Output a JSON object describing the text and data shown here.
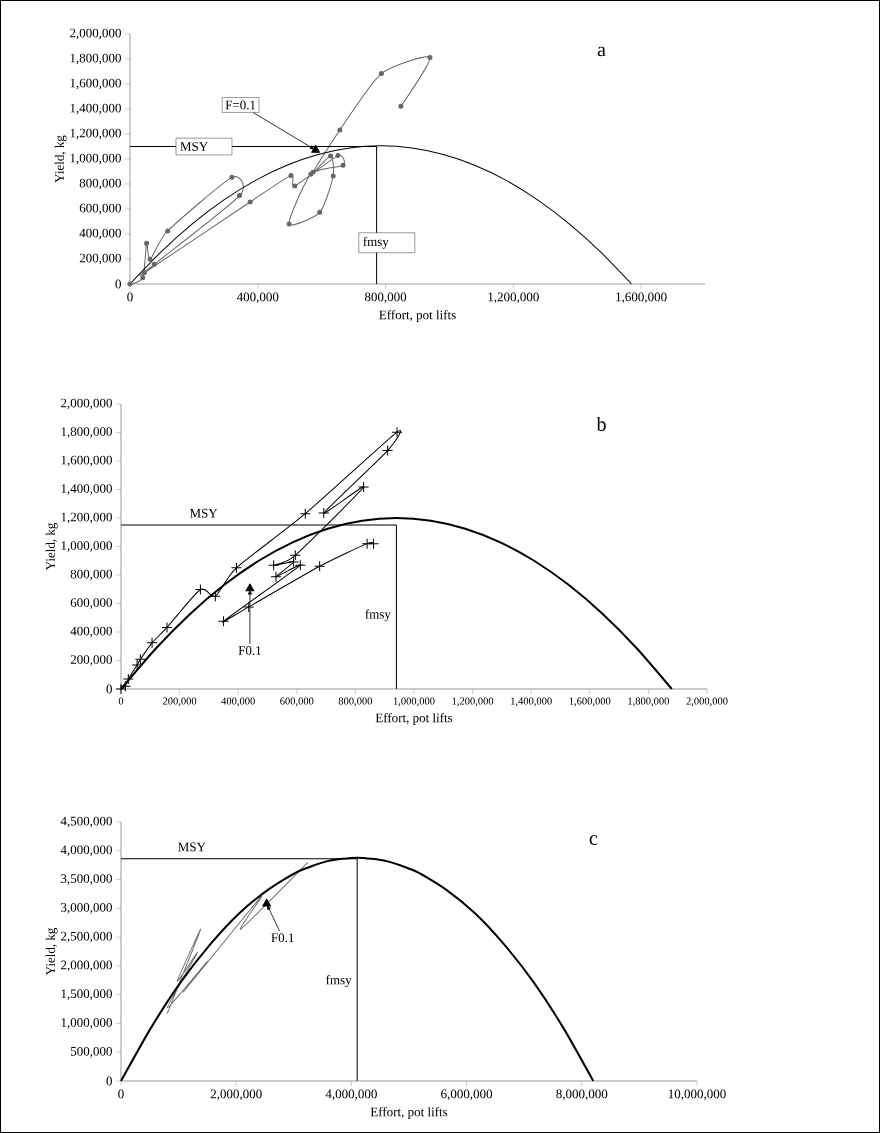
{
  "chart_data": [
    {
      "type": "line",
      "title": "a",
      "xlabel": "Effort, pot lifts",
      "ylabel": "Yield, kg",
      "xlim": [
        0,
        1800000
      ],
      "ylim": [
        0,
        2000000
      ],
      "xticks": [
        0,
        {
          "value": 400000,
          "label": "400,000"
        },
        {
          "value": 800000,
          "label": "800,000"
        },
        {
          "value": 1200000,
          "label": "1,200,000"
        },
        {
          "value": 1600000,
          "label": "1,600,000"
        }
      ],
      "yticks": [
        0,
        {
          "value": 200000,
          "label": "200,000"
        },
        {
          "value": 400000,
          "label": "400,000"
        },
        {
          "value": 600000,
          "label": "600,000"
        },
        {
          "value": 800000,
          "label": "800,000"
        },
        {
          "value": 1000000,
          "label": "1,000,000"
        },
        {
          "value": 1200000,
          "label": "1,200,000"
        },
        {
          "value": 1400000,
          "label": "1,400,000"
        },
        {
          "value": 1600000,
          "label": "1,600,000"
        },
        {
          "value": 1800000,
          "label": "1,800,000"
        },
        {
          "value": 2000000,
          "label": "2,000,000"
        }
      ],
      "series": [
        {
          "color": "#666666",
          "marker": "circle",
          "x": [
            0,
            40000,
            52000,
            63000,
            118000,
            319000,
            343000,
            76000,
            45000,
            376000,
            504000,
            516000,
            651000,
            667000,
            566000,
            498000,
            594000,
            636000,
            628000,
            573000,
            657000,
            787000,
            939000,
            848000
          ],
          "values": [
            0,
            50000,
            325000,
            197000,
            424000,
            853000,
            707000,
            157000,
            90000,
            656000,
            867000,
            784000,
            1027000,
            949000,
            877000,
            480000,
            573000,
            864000,
            1024000,
            893000,
            1232000,
            1683000,
            1811000,
            1421000
          ]
        },
        {
          "color": "#000000",
          "marker": "none",
          "x": [
            0,
            98000,
            196000,
            294000,
            393000,
            491000,
            589000,
            687000,
            785000,
            883000,
            981000,
            1079000,
            1178000,
            1276000,
            1374000,
            1472000,
            1570000
          ],
          "values": [
            0,
            259000,
            483000,
            673000,
            829000,
            950000,
            1036000,
            1088000,
            1105000,
            1088000,
            1036000,
            950000,
            829000,
            673000,
            483000,
            259000,
            0
          ]
        },
        {
          "name": "MSY",
          "color": "#000000",
          "marker": "none",
          "x": [
            0,
            772000
          ],
          "values": [
            1100000,
            1100000
          ]
        },
        {
          "name": "fmsy",
          "color": "#000000",
          "marker": "none",
          "x": [
            772000,
            772000
          ],
          "values": [
            0,
            1100000
          ]
        },
        {
          "type": "scatter",
          "color": "#000000",
          "marker": "triangle",
          "x": [
            581000
          ],
          "values": [
            1072000
          ]
        }
      ],
      "annotations": [
        {
          "text": "F=0.1",
          "x": 581000,
          "y": 1072000
        }
      ]
    },
    {
      "type": "line",
      "title": "b",
      "xlabel": "Effort, pot lifts",
      "ylabel": "Yield, kg",
      "xlim": [
        0,
        2000000
      ],
      "ylim": [
        0,
        2000000
      ],
      "xticks": [
        0,
        {
          "value": 200000,
          "label": "200,000"
        },
        {
          "value": 400000,
          "label": "400,000"
        },
        {
          "value": 600000,
          "label": "600,000"
        },
        {
          "value": 800000,
          "label": "800,000"
        },
        {
          "value": 1000000,
          "label": "1,000,000"
        },
        {
          "value": 1200000,
          "label": "1,200,000"
        },
        {
          "value": 1400000,
          "label": "1,400,000"
        },
        {
          "value": 1600000,
          "label": "1,600,000"
        },
        {
          "value": 1800000,
          "label": "1,800,000"
        },
        {
          "value": 2000000,
          "label": "2,000,000"
        }
      ],
      "yticks": [
        0,
        {
          "value": 200000,
          "label": "200,000"
        },
        {
          "value": 400000,
          "label": "400,000"
        },
        {
          "value": 600000,
          "label": "600,000"
        },
        {
          "value": 800000,
          "label": "800,000"
        },
        {
          "value": 1000000,
          "label": "1,000,000"
        },
        {
          "value": 1200000,
          "label": "1,200,000"
        },
        {
          "value": 1400000,
          "label": "1,400,000"
        },
        {
          "value": 1600000,
          "label": "1,600,000"
        },
        {
          "value": 1800000,
          "label": "1,800,000"
        },
        {
          "value": 2000000,
          "label": "2,000,000"
        }
      ],
      "series": [
        {
          "color": "#000000",
          "marker": "cross",
          "x": [
            0,
            15000,
            25000,
            55000,
            66000,
            106000,
            157000,
            271000,
            322000,
            394000,
            629000,
            942000,
            910000,
            692000,
            828000,
            595000,
            521000,
            589000,
            529000,
            612000,
            350000,
            436000,
            678000,
            840000,
            862000
          ],
          "values": [
            0,
            20000,
            70000,
            168000,
            208000,
            324000,
            432000,
            698000,
            651000,
            850000,
            1230000,
            1802000,
            1673000,
            1235000,
            1417000,
            938000,
            868000,
            892000,
            787000,
            868000,
            476000,
            576000,
            861000,
            1020000,
            1020000
          ]
        },
        {
          "color": "#000000",
          "marker": "none",
          "x": [
            0,
            117500,
            235000,
            352500,
            470000,
            587500,
            705000,
            822500,
            940000,
            1057500,
            1175000,
            1292500,
            1410000,
            1527500,
            1645000,
            1762500,
            1880000
          ],
          "values": [
            0,
            281000,
            525000,
            731000,
            900000,
            1031000,
            1125000,
            1181000,
            1200000,
            1181000,
            1125000,
            1031000,
            900000,
            731000,
            525000,
            281000,
            0
          ]
        },
        {
          "name": "MSY",
          "color": "#000000",
          "marker": "none",
          "x": [
            0,
            940000
          ],
          "values": [
            1150000,
            1150000
          ]
        },
        {
          "name": "fmsy",
          "color": "#000000",
          "marker": "none",
          "x": [
            940000,
            940000
          ],
          "values": [
            0,
            1150000
          ]
        },
        {
          "type": "scatter",
          "color": "#000000",
          "marker": "triangle",
          "x": [
            440000
          ],
          "values": [
            705000
          ]
        }
      ],
      "annotations": [
        {
          "text": "F0.1",
          "x": 440000,
          "y": 705000
        }
      ]
    },
    {
      "type": "line",
      "title": "c",
      "xlabel": "Effort, pot lifts",
      "ylabel": "Yield, kg",
      "xlim": [
        0,
        10000000
      ],
      "ylim": [
        0,
        4500000
      ],
      "xticks": [
        0,
        {
          "value": 2000000,
          "label": "2,000,000"
        },
        {
          "value": 4000000,
          "label": "4,000,000"
        },
        {
          "value": 6000000,
          "label": "6,000,000"
        },
        {
          "value": 8000000,
          "label": "8,000,000"
        },
        {
          "value": 10000000,
          "label": "10,000,000"
        }
      ],
      "yticks": [
        0,
        {
          "value": 500000,
          "label": "500,000"
        },
        {
          "value": 1000000,
          "label": "1,000,000"
        },
        {
          "value": 1500000,
          "label": "1,500,000"
        },
        {
          "value": 2000000,
          "label": "2,000,000"
        },
        {
          "value": 2500000,
          "label": "2,500,000"
        },
        {
          "value": 3000000,
          "label": "3,000,000"
        },
        {
          "value": 3500000,
          "label": "3,500,000"
        },
        {
          "value": 4000000,
          "label": "4,000,000"
        },
        {
          "value": 4500000,
          "label": "4,500,000"
        }
      ],
      "series": [
        {
          "color": "#707070",
          "marker": "none",
          "x": [
            802000,
            1384000,
            977000,
            1326000,
            802000,
            1500000,
            1093000,
            2430000,
            2081000,
            3244000
          ],
          "values": [
            1170000,
            2640000,
            1730000,
            2230000,
            1270000,
            2080000,
            1560000,
            3200000,
            2640000,
            3800000
          ]
        },
        {
          "color": "#000000",
          "marker": "none",
          "x": [
            0,
            512500,
            1025000,
            1537500,
            2050000,
            2562500,
            3075000,
            3587500,
            4100000,
            4612500,
            5125000,
            5637500,
            6150000,
            6662500,
            7175000,
            7687500,
            8200000
          ],
          "values": [
            0,
            910000,
            1700000,
            2360000,
            2910000,
            3330000,
            3640000,
            3820000,
            3880000,
            3820000,
            3640000,
            3330000,
            2910000,
            2360000,
            1700000,
            910000,
            0
          ]
        },
        {
          "name": "MSY",
          "color": "#000000",
          "marker": "none",
          "x": [
            0,
            4100000
          ],
          "values": [
            3860000,
            3860000
          ]
        },
        {
          "name": "fmsy",
          "color": "#000000",
          "marker": "none",
          "x": [
            4100000,
            4100000
          ],
          "values": [
            0,
            3860000
          ]
        },
        {
          "type": "scatter",
          "color": "#000000",
          "marker": "triangle",
          "x": [
            2529000
          ],
          "values": [
            3080000
          ]
        }
      ],
      "annotations": [
        {
          "text": "F0.1",
          "x": 2529000,
          "y": 3080000
        }
      ]
    }
  ]
}
